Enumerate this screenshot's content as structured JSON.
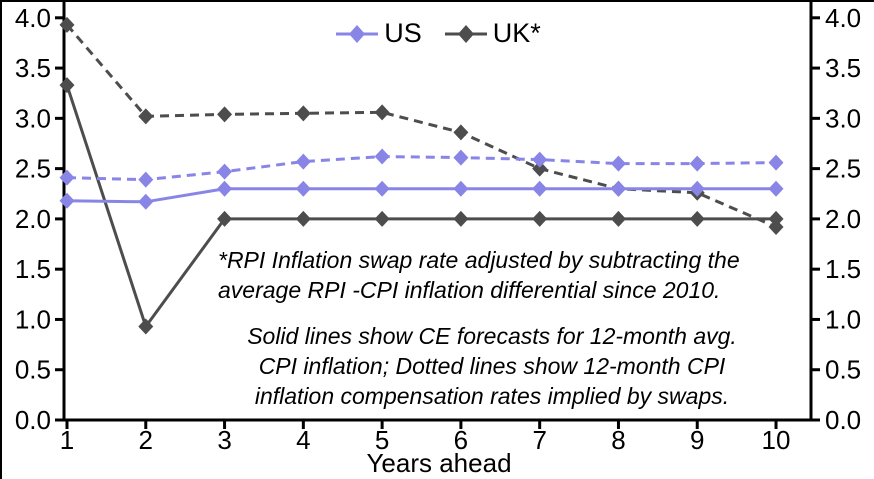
{
  "chart_data": {
    "type": "line",
    "title": "",
    "xlabel": "Years ahead",
    "ylabel": "",
    "x": [
      1,
      2,
      3,
      4,
      5,
      6,
      7,
      8,
      9,
      10
    ],
    "y_ticks": [
      "0.0",
      "0.5",
      "1.0",
      "1.5",
      "2.0",
      "2.5",
      "3.0",
      "3.5",
      "4.0"
    ],
    "ylim": [
      0.0,
      4.0
    ],
    "grid": false,
    "axes": "left-right-bottom",
    "legend": [
      "US",
      "UK*"
    ],
    "legend_position": "top-center",
    "marker": "diamond",
    "series": [
      {
        "name": "US solid (CE forecast, 12-month avg. CPI inflation)",
        "legend": "US",
        "style": "solid",
        "color": "#8885e7",
        "values": [
          2.18,
          2.17,
          2.3,
          2.3,
          2.3,
          2.3,
          2.3,
          2.3,
          2.3,
          2.3
        ]
      },
      {
        "name": "US dotted (12-month CPI inflation compensation implied by swaps)",
        "legend": "US",
        "style": "dotted",
        "color": "#8885e7",
        "values": [
          2.41,
          2.39,
          2.47,
          2.57,
          2.62,
          2.61,
          2.59,
          2.55,
          2.55,
          2.56
        ]
      },
      {
        "name": "UK* solid (CE forecast, 12-month avg. CPI inflation)",
        "legend": "UK*",
        "style": "solid",
        "color": "#4d4d4d",
        "values": [
          3.33,
          0.93,
          2.0,
          2.0,
          2.0,
          2.0,
          2.0,
          2.0,
          2.0,
          2.0
        ]
      },
      {
        "name": "UK* dotted (12-month CPI inflation compensation implied by swaps)",
        "legend": "UK*",
        "style": "dotted",
        "color": "#4d4d4d",
        "values": [
          3.93,
          3.02,
          3.04,
          3.05,
          3.06,
          2.86,
          2.5,
          2.3,
          2.26,
          1.92
        ]
      }
    ],
    "annotations": {
      "footnote": [
        "*RPI Inflation swap rate adjusted by subtracting the",
        "average RPI -CPI inflation differential since 2010."
      ],
      "note": [
        "Solid lines show CE forecasts for 12-month avg.",
        "CPI inflation; Dotted lines show 12-month CPI",
        "inflation compensation rates implied by swaps."
      ]
    },
    "colors": {
      "us_accent": "#8885e7",
      "uk_accent": "#4d4d4d",
      "axis": "#000000",
      "background": "#ffffff"
    }
  }
}
